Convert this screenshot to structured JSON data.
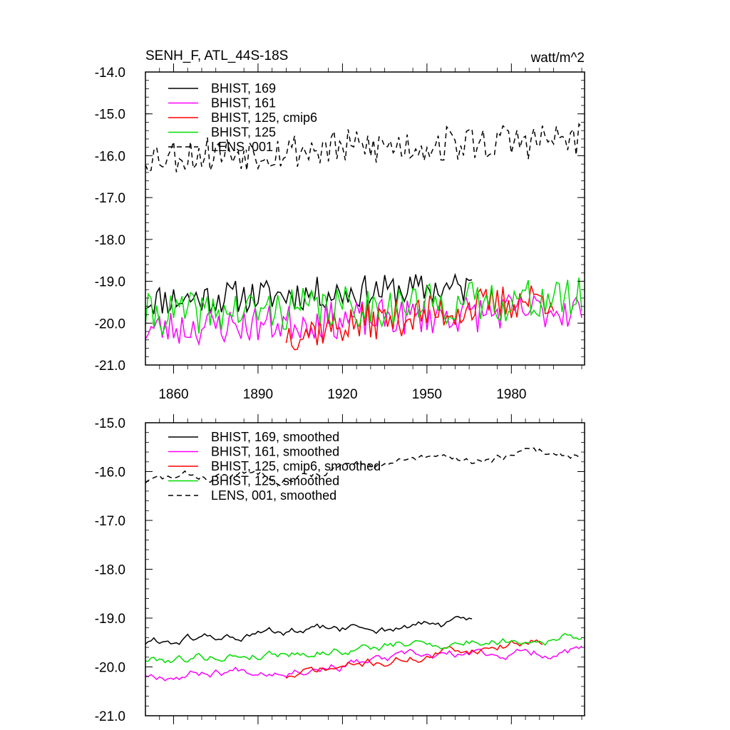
{
  "title_left": "SENH_F, ATL_44S-18S",
  "title_right": "watt/m^2",
  "colors": {
    "BHIST_169": "#000000",
    "BHIST_161": "#ff00ff",
    "BHIST_125_cmip6": "#ff0000",
    "BHIST_125": "#00dd00",
    "LENS_001": "#000000"
  },
  "chart_data": [
    {
      "type": "line",
      "title": "SENH_F, ATL_44S-18S",
      "units": "watt/m^2",
      "xlim": [
        1850,
        2006
      ],
      "ylim": [
        -21.0,
        -14.0
      ],
      "x_ticks": [
        "1860",
        "1890",
        "1920",
        "1950",
        "1980"
      ],
      "y_ticks": [
        "-14.0",
        "-15.0",
        "-16.0",
        "-17.0",
        "-18.0",
        "-19.0",
        "-20.0",
        "-21.0"
      ],
      "legend_position": "top-left",
      "grid": false,
      "series": [
        {
          "name": "BHIST, 169",
          "color": "#000000",
          "dash": "solid",
          "x_start": 1850,
          "x_end": 1966,
          "mean": -19.3,
          "amp": 0.4,
          "trend": 0.3,
          "seed": 11
        },
        {
          "name": "BHIST, 161",
          "color": "#ff00ff",
          "dash": "solid",
          "x_start": 1850,
          "x_end": 2005,
          "mean": -19.9,
          "amp": 0.45,
          "trend": 0.5,
          "seed": 23
        },
        {
          "name": "BHIST, 125, cmip6",
          "color": "#ff0000",
          "dash": "solid",
          "x_start": 1900,
          "x_end": 1995,
          "mean": -19.8,
          "amp": 0.45,
          "trend": 0.9,
          "seed": 37
        },
        {
          "name": "BHIST, 125",
          "color": "#00dd00",
          "dash": "solid",
          "x_start": 1850,
          "x_end": 2005,
          "mean": -19.6,
          "amp": 0.5,
          "trend": 0.4,
          "seed": 41
        },
        {
          "name": "LENS, 001",
          "color": "#000000",
          "dash": "dashed",
          "x_start": 1850,
          "x_end": 2005,
          "mean": -15.8,
          "amp": 0.45,
          "trend": 0.4,
          "seed": 53
        }
      ]
    },
    {
      "type": "line",
      "xlim": [
        1850,
        2006
      ],
      "ylim": [
        -21.0,
        -15.0
      ],
      "y_ticks": [
        "-15.0",
        "-16.0",
        "-17.0",
        "-18.0",
        "-19.0",
        "-20.0",
        "-21.0"
      ],
      "legend_position": "top-left",
      "grid": false,
      "series": [
        {
          "name": "BHIST, 169, smoothed",
          "color": "#000000",
          "dash": "solid",
          "x_start": 1850,
          "x_end": 1966,
          "mean": -19.3,
          "amp": 0.12,
          "trend": 0.4,
          "seed": 61
        },
        {
          "name": "BHIST, 161, smoothed",
          "color": "#ff00ff",
          "dash": "solid",
          "x_start": 1850,
          "x_end": 2005,
          "mean": -19.9,
          "amp": 0.12,
          "trend": 0.5,
          "seed": 67
        },
        {
          "name": "BHIST, 125, cmip6, smoothed",
          "color": "#ff0000",
          "dash": "solid",
          "x_start": 1900,
          "x_end": 1991,
          "mean": -19.8,
          "amp": 0.12,
          "trend": 0.8,
          "seed": 71
        },
        {
          "name": "BHIST, 125, smoothed",
          "color": "#00dd00",
          "dash": "solid",
          "x_start": 1850,
          "x_end": 2005,
          "mean": -19.6,
          "amp": 0.12,
          "trend": 0.5,
          "seed": 79
        },
        {
          "name": "LENS, 001, smoothed",
          "color": "#000000",
          "dash": "dashed",
          "x_start": 1850,
          "x_end": 2005,
          "mean": -15.9,
          "amp": 0.12,
          "trend": 0.6,
          "seed": 83
        }
      ]
    }
  ]
}
